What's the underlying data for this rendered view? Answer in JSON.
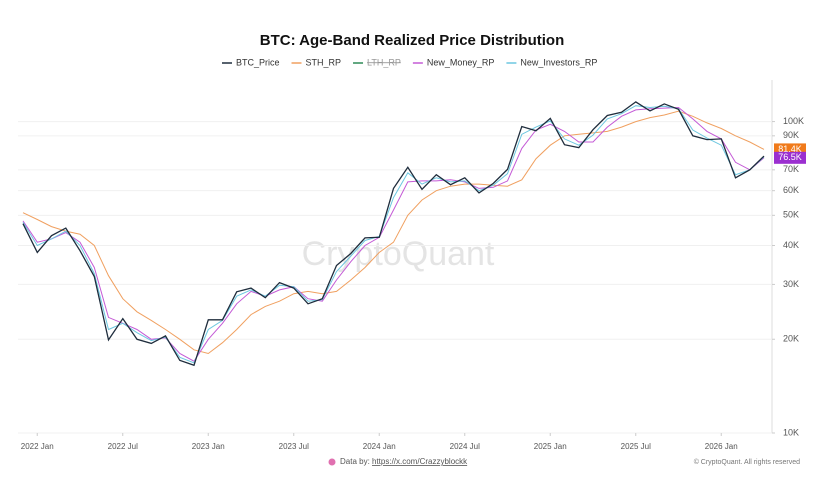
{
  "chart_data": {
    "type": "line",
    "title": "BTC: Age-Band Realized Price Distribution",
    "watermark": "CryptoQuant",
    "source_prefix": "Data by:",
    "source_link": "https://x.com/Crazzyblockk",
    "copyright": "© CryptoQuant. All rights reserved",
    "log_scale": true,
    "grid": true,
    "legend": "top",
    "x": [
      "2021-12",
      "2022-01",
      "2022-02",
      "2022-03",
      "2022-04",
      "2022-05",
      "2022-06",
      "2022-07",
      "2022-08",
      "2022-09",
      "2022-10",
      "2022-11",
      "2022-12",
      "2023-01",
      "2023-02",
      "2023-03",
      "2023-04",
      "2023-05",
      "2023-06",
      "2023-07",
      "2023-08",
      "2023-09",
      "2023-10",
      "2023-11",
      "2023-12",
      "2024-01",
      "2024-02",
      "2024-03",
      "2024-04",
      "2024-05",
      "2024-06",
      "2024-07",
      "2024-08",
      "2024-09",
      "2024-10",
      "2024-11",
      "2024-12",
      "2025-01",
      "2025-02",
      "2025-03",
      "2025-04",
      "2025-05",
      "2025-06",
      "2025-07",
      "2025-08",
      "2025-09",
      "2025-10",
      "2025-11",
      "2025-12",
      "2026-01",
      "2026-02",
      "2026-03",
      "2026-04"
    ],
    "xlim": [
      "2021-12",
      "2026-04"
    ],
    "xticks": [
      {
        "value": "2022-01",
        "label": "2022 Jan"
      },
      {
        "value": "2022-07",
        "label": "2022 Jul"
      },
      {
        "value": "2023-01",
        "label": "2023 Jan"
      },
      {
        "value": "2023-07",
        "label": "2023 Jul"
      },
      {
        "value": "2024-01",
        "label": "2024 Jan"
      },
      {
        "value": "2024-07",
        "label": "2024 Jul"
      },
      {
        "value": "2025-01",
        "label": "2025 Jan"
      },
      {
        "value": "2025-07",
        "label": "2025 Jul"
      },
      {
        "value": "2026-01",
        "label": "2026 Jan"
      }
    ],
    "ylim": [
      10000,
      136000
    ],
    "yticks": [
      {
        "value": 10000,
        "label": "10K"
      },
      {
        "value": 20000,
        "label": "20K"
      },
      {
        "value": 30000,
        "label": "30K"
      },
      {
        "value": 40000,
        "label": "40K"
      },
      {
        "value": 50000,
        "label": "50K"
      },
      {
        "value": 60000,
        "label": "60K"
      },
      {
        "value": 70000,
        "label": "70K"
      },
      {
        "value": 90000,
        "label": "90K"
      },
      {
        "value": 100000,
        "label": "100K"
      }
    ],
    "series": [
      {
        "name": "BTC_Price",
        "color": "#1f2d3d",
        "values": [
          47000,
          38000,
          43000,
          45500,
          38500,
          31800,
          19900,
          23300,
          20000,
          19400,
          20500,
          17100,
          16500,
          23100,
          23100,
          28400,
          29200,
          27200,
          30400,
          29200,
          26000,
          27000,
          34500,
          37700,
          42300,
          42500,
          61000,
          71300,
          60600,
          67500,
          62700,
          66000,
          59000,
          63300,
          70200,
          96400,
          93400,
          102400,
          84300,
          82500,
          94200,
          104600,
          107100,
          115700,
          108200,
          114000,
          109500,
          90000,
          87500,
          88000,
          66000,
          70000,
          77500
        ]
      },
      {
        "name": "STH_RP",
        "color": "#f0a060",
        "last_label": "81.4K",
        "values": [
          51000,
          48500,
          46000,
          44500,
          43500,
          40000,
          32000,
          27000,
          24500,
          23000,
          21500,
          20000,
          18500,
          18000,
          19500,
          21500,
          24000,
          25500,
          26500,
          28000,
          28500,
          28000,
          28500,
          31000,
          34000,
          38000,
          41000,
          50000,
          56000,
          60000,
          62000,
          63000,
          63000,
          62500,
          62000,
          65000,
          76000,
          84000,
          90000,
          91000,
          92000,
          93000,
          96000,
          100000,
          103000,
          105000,
          108000,
          104000,
          99000,
          95000,
          90000,
          86000,
          81400
        ]
      },
      {
        "name": "LTH_RP",
        "color": "#2e8b57",
        "hidden": true
      },
      {
        "name": "New_Money_RP",
        "color": "#c45ad6",
        "last_label": "76.5K",
        "values": [
          48000,
          41000,
          42000,
          44000,
          41000,
          34000,
          23500,
          22500,
          21500,
          20000,
          20200,
          18000,
          17000,
          20000,
          22500,
          26000,
          28500,
          27500,
          28800,
          29500,
          27000,
          26500,
          31000,
          35500,
          40000,
          42500,
          52000,
          64000,
          64500,
          64500,
          65000,
          64000,
          61000,
          61500,
          64500,
          82000,
          94000,
          98000,
          93000,
          86000,
          86000,
          96000,
          104000,
          109000,
          110000,
          110500,
          111000,
          102000,
          93000,
          88000,
          74000,
          70000,
          76500
        ]
      },
      {
        "name": "New_Investors_RP",
        "color": "#6cc7e0",
        "values": [
          47500,
          40000,
          42000,
          44500,
          40000,
          32500,
          21500,
          22500,
          21000,
          19800,
          20300,
          17500,
          16800,
          21500,
          23000,
          27500,
          28800,
          27500,
          29800,
          29500,
          26500,
          26800,
          33000,
          37000,
          41500,
          42800,
          57000,
          68500,
          63000,
          66000,
          64000,
          64500,
          60000,
          62500,
          68000,
          91000,
          96000,
          100500,
          88000,
          84000,
          90500,
          102000,
          106000,
          112500,
          111000,
          112000,
          110000,
          94000,
          88500,
          84000,
          67500,
          70000,
          77000
        ]
      }
    ]
  }
}
